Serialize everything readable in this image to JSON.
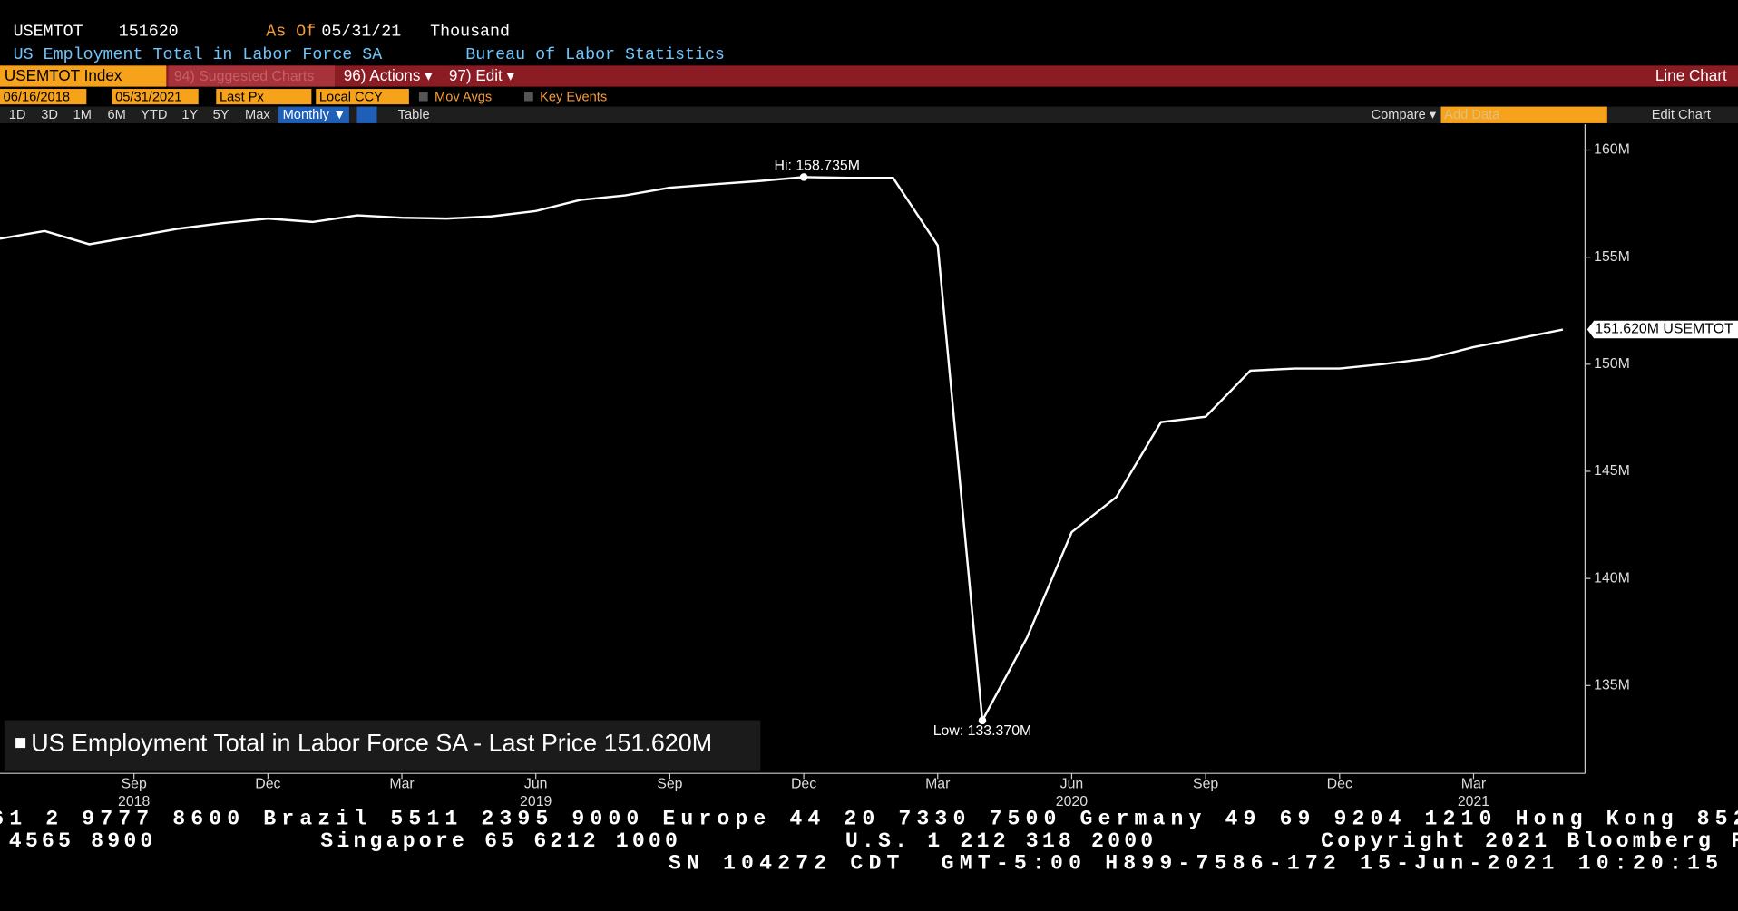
{
  "header": {
    "ticker": "USEMTOT",
    "last": "151620",
    "as_of_label": "As Of",
    "as_of_date": "05/31/21",
    "units": "Thousand",
    "description": "US Employment Total in Labor Force SA",
    "source": "Bureau of Labor Statistics"
  },
  "toolbar": {
    "security": "USEMTOT Index",
    "suggested": "94) Suggested Charts",
    "actions": "96) Actions ▾",
    "edit": "97) Edit ▾",
    "chart_kind": "Line Chart",
    "start_date": "06/16/2018",
    "end_date": "05/31/2021",
    "field": "Last Px",
    "currency": "Local CCY",
    "mov_avgs": "Mov Avgs",
    "key_events": "Key Events",
    "ranges": [
      "1D",
      "3D",
      "1M",
      "6M",
      "YTD",
      "1Y",
      "5Y",
      "Max"
    ],
    "period": "Monthly ▼",
    "table": "Table",
    "compare": "Compare ▾",
    "add_data": "Add Data",
    "edit_chart": "Edit Chart"
  },
  "chart_data": {
    "type": "line",
    "x": [
      "2018-06",
      "2018-07",
      "2018-08",
      "2018-09",
      "2018-10",
      "2018-11",
      "2018-12",
      "2019-01",
      "2019-02",
      "2019-03",
      "2019-04",
      "2019-05",
      "2019-06",
      "2019-07",
      "2019-08",
      "2019-09",
      "2019-10",
      "2019-11",
      "2019-12",
      "2020-01",
      "2020-02",
      "2020-03",
      "2020-04",
      "2020-05",
      "2020-06",
      "2020-07",
      "2020-08",
      "2020-09",
      "2020-10",
      "2020-11",
      "2020-12",
      "2021-01",
      "2021-02",
      "2021-03",
      "2021-04",
      "2021-05"
    ],
    "series": [
      {
        "name": "US Employment Total in Labor Force SA",
        "color": "#ffffff",
        "values": [
          155.86,
          156.22,
          155.6,
          155.96,
          156.33,
          156.59,
          156.8,
          156.64,
          156.95,
          156.84,
          156.8,
          156.9,
          157.15,
          157.67,
          157.88,
          158.24,
          158.4,
          158.55,
          158.735,
          158.7,
          158.7,
          155.55,
          133.37,
          137.24,
          142.16,
          143.8,
          147.3,
          147.55,
          149.7,
          149.8,
          149.8,
          150.01,
          150.27,
          150.8,
          151.2,
          151.62
        ]
      }
    ],
    "ylim": [
      130.9,
      161.2
    ],
    "yticks": [
      {
        "value": 160,
        "label": "160M"
      },
      {
        "value": 155,
        "label": "155M"
      },
      {
        "value": 150,
        "label": "150M"
      },
      {
        "value": 145,
        "label": "145M"
      },
      {
        "value": 140,
        "label": "140M"
      },
      {
        "value": 135,
        "label": "135M"
      }
    ],
    "xticks": [
      {
        "value": "2018-09",
        "label": "Sep",
        "year": "2018"
      },
      {
        "value": "2018-12",
        "label": "Dec"
      },
      {
        "value": "2019-03",
        "label": "Mar"
      },
      {
        "value": "2019-06",
        "label": "Jun",
        "year": "2019"
      },
      {
        "value": "2019-09",
        "label": "Sep"
      },
      {
        "value": "2019-12",
        "label": "Dec"
      },
      {
        "value": "2020-03",
        "label": "Mar"
      },
      {
        "value": "2020-06",
        "label": "Jun",
        "year": "2020"
      },
      {
        "value": "2020-09",
        "label": "Sep"
      },
      {
        "value": "2020-12",
        "label": "Dec"
      },
      {
        "value": "2021-03",
        "label": "Mar",
        "year": "2021"
      }
    ],
    "hi": {
      "x": "2019-12",
      "value": 158.735,
      "label": "Hi: 158.735M"
    },
    "low": {
      "x": "2020-04",
      "value": 133.37,
      "label": "Low: 133.370M"
    },
    "last": {
      "value": 151.62,
      "label": "151.620M USEMTOT"
    },
    "legend_label": "US Employment Total in Labor Force SA - Last Price 151.620M"
  },
  "footer": [
    "61 2 9777 8600 Brazil 5511 2395 9000 Europe 44 20 7330 7500 Germany 49 69 9204 1210 Hong Kong 852",
    "4565 8900          Singapore 65 6212 1000          U.S. 1 212 318 2000          Copyright 2021 Bloomberg F",
    "SN 104272 CDT  GMT-5:00 H899-7586-172 15-Jun-2021 10:20:15"
  ]
}
